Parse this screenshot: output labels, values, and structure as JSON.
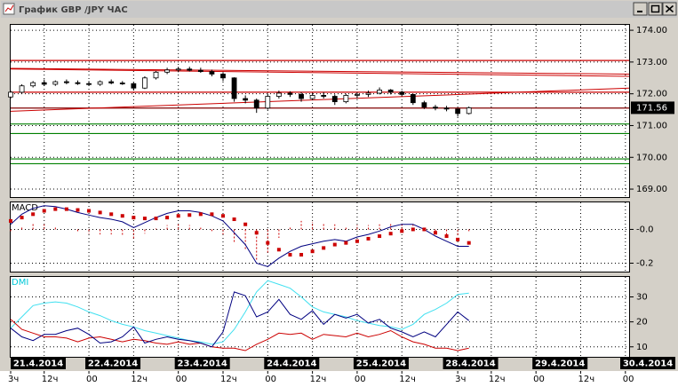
{
  "window": {
    "title": "График GBP /JPY ЧАС"
  },
  "chart_data": [
    {
      "type": "candlestick",
      "x": [
        3,
        6,
        9,
        12,
        15,
        18,
        21,
        24,
        27,
        30,
        33,
        36,
        39,
        42,
        45,
        48,
        51,
        54,
        57,
        60,
        63,
        66,
        69,
        72,
        75,
        78,
        81,
        84,
        87,
        90,
        93,
        96,
        99,
        102,
        105,
        108,
        111,
        114,
        117,
        120,
        123,
        126
      ],
      "open": [
        171.9,
        172.05,
        172.25,
        172.35,
        172.3,
        172.38,
        172.35,
        172.32,
        172.3,
        172.38,
        172.34,
        172.32,
        172.18,
        172.5,
        172.68,
        172.75,
        172.78,
        172.74,
        172.7,
        172.62,
        172.5,
        171.85,
        171.8,
        171.55,
        171.92,
        172.02,
        171.98,
        171.85,
        171.95,
        171.92,
        171.75,
        171.95,
        171.98,
        172.02,
        172.12,
        172.05,
        171.98,
        171.72,
        171.58,
        171.55,
        171.52,
        171.38
      ],
      "high": [
        172.1,
        172.3,
        172.4,
        172.45,
        172.42,
        172.45,
        172.42,
        172.4,
        172.42,
        172.45,
        172.4,
        172.35,
        172.55,
        172.72,
        172.82,
        172.85,
        172.85,
        172.82,
        172.76,
        172.68,
        172.52,
        171.95,
        171.85,
        172.0,
        172.1,
        172.08,
        172.05,
        172.02,
        172.05,
        171.98,
        172.0,
        172.05,
        172.1,
        172.2,
        172.15,
        172.1,
        172.0,
        171.78,
        171.65,
        171.62,
        171.55,
        171.6
      ],
      "low": [
        171.85,
        172.0,
        172.2,
        172.25,
        172.25,
        172.3,
        172.28,
        172.25,
        172.25,
        172.3,
        172.28,
        172.1,
        172.15,
        172.45,
        172.62,
        172.68,
        172.7,
        172.66,
        172.55,
        172.4,
        171.75,
        171.7,
        171.4,
        171.5,
        171.85,
        171.9,
        171.75,
        171.8,
        171.85,
        171.65,
        171.7,
        171.85,
        171.9,
        171.98,
        171.98,
        171.92,
        171.65,
        171.52,
        171.48,
        171.45,
        171.28,
        171.35
      ],
      "close": [
        172.05,
        172.25,
        172.35,
        172.3,
        172.38,
        172.35,
        172.32,
        172.3,
        172.38,
        172.34,
        172.32,
        172.18,
        172.5,
        172.68,
        172.75,
        172.78,
        172.74,
        172.7,
        172.62,
        172.5,
        171.85,
        171.8,
        171.55,
        171.92,
        172.02,
        171.98,
        171.85,
        171.95,
        171.92,
        171.75,
        171.95,
        171.98,
        172.02,
        172.12,
        172.05,
        171.98,
        171.72,
        171.58,
        171.55,
        171.52,
        171.38,
        171.56
      ],
      "up_color": "#ffffff",
      "down_color": "#000000",
      "xlim": [
        3,
        169
      ],
      "ylim": [
        168.75,
        174.17
      ],
      "yticks": [
        {
          "value": 174,
          "label": "174.00"
        },
        {
          "value": 173,
          "label": "173.00"
        },
        {
          "value": 172,
          "label": "172.00"
        },
        {
          "value": 171,
          "label": "171.00"
        },
        {
          "value": 170,
          "label": "170.00"
        },
        {
          "value": 169,
          "label": "169.00"
        }
      ],
      "grid": true,
      "levels": [
        {
          "value": 173.05,
          "color": "#cc0000"
        },
        {
          "value": 172.05,
          "color": "#cc0000"
        },
        {
          "value": 171.55,
          "color": "#800000"
        },
        {
          "value": 171.05,
          "color": "#008000"
        },
        {
          "value": 170.75,
          "color": "#008000"
        },
        {
          "value": 169.95,
          "color": "#008000"
        },
        {
          "value": 169.8,
          "color": "#008000"
        }
      ],
      "trend_lines": [
        {
          "x": [
            3,
            169
          ],
          "y": [
            172.8,
            172.62
          ],
          "color": "#cc0000"
        },
        {
          "x": [
            3,
            169
          ],
          "y": [
            172.78,
            172.55
          ],
          "color": "#cc0000"
        },
        {
          "x": [
            3,
            169
          ],
          "y": [
            171.45,
            172.18
          ],
          "color": "#cc0000"
        }
      ],
      "last_price": 171.56
    },
    {
      "type": "line",
      "title": "MACD",
      "title_color": "#000000",
      "x": [
        3,
        6,
        9,
        12,
        15,
        18,
        21,
        24,
        27,
        30,
        33,
        36,
        39,
        42,
        45,
        48,
        51,
        54,
        57,
        60,
        63,
        66,
        69,
        72,
        75,
        78,
        81,
        84,
        87,
        90,
        93,
        96,
        99,
        102,
        105,
        108,
        111,
        114,
        117,
        120,
        123,
        126
      ],
      "xlim": [
        3,
        169
      ],
      "ylim": [
        -0.25,
        0.16
      ],
      "yticks": [
        {
          "value": 0,
          "label": "-0.0"
        },
        -0.2
      ],
      "grid": true,
      "series": [
        {
          "color": "#cc0000",
          "style": "bars",
          "values": [
            -0.02,
            0.02,
            0.035,
            0.03,
            0.015,
            0,
            -0.015,
            -0.025,
            -0.03,
            -0.03,
            -0.035,
            -0.06,
            -0.025,
            0.005,
            0.025,
            0.03,
            0.025,
            0.01,
            -0.01,
            -0.03,
            -0.08,
            -0.12,
            -0.18,
            -0.14,
            -0.05,
            0.02,
            0.05,
            0.045,
            0.04,
            0.03,
            0.01,
            0.025,
            0.025,
            0.03,
            0.04,
            0.04,
            0.03,
            0,
            -0.02,
            -0.03,
            -0.04,
            -0.02
          ]
        },
        {
          "color": "#000080",
          "style": "line",
          "values": [
            0.03,
            0.09,
            0.125,
            0.14,
            0.135,
            0.12,
            0.1,
            0.085,
            0.07,
            0.06,
            0.045,
            0.01,
            0.04,
            0.07,
            0.095,
            0.11,
            0.11,
            0.1,
            0.08,
            0.05,
            -0.02,
            -0.09,
            -0.2,
            -0.22,
            -0.17,
            -0.13,
            -0.1,
            -0.085,
            -0.07,
            -0.06,
            -0.07,
            -0.045,
            -0.03,
            -0.01,
            0.015,
            0.03,
            0.03,
            0.0,
            -0.04,
            -0.07,
            -0.1,
            -0.1
          ]
        },
        {
          "color": "#cc0000",
          "style": "markers",
          "values": [
            0.05,
            0.07,
            0.09,
            0.11,
            0.12,
            0.12,
            0.115,
            0.11,
            0.1,
            0.09,
            0.08,
            0.07,
            0.065,
            0.065,
            0.07,
            0.08,
            0.085,
            0.09,
            0.09,
            0.08,
            0.06,
            0.03,
            -0.02,
            -0.08,
            -0.12,
            -0.15,
            -0.15,
            -0.13,
            -0.11,
            -0.09,
            -0.08,
            -0.07,
            -0.055,
            -0.04,
            -0.025,
            -0.01,
            0.0,
            0.0,
            -0.02,
            -0.04,
            -0.06,
            -0.08
          ]
        }
      ]
    },
    {
      "type": "line",
      "title": "DMI",
      "title_color": "#00c8d8",
      "x": [
        3,
        6,
        9,
        12,
        15,
        18,
        21,
        24,
        27,
        30,
        33,
        36,
        39,
        42,
        45,
        48,
        51,
        54,
        57,
        60,
        63,
        66,
        69,
        72,
        75,
        78,
        81,
        84,
        87,
        90,
        93,
        96,
        99,
        102,
        105,
        108,
        111,
        114,
        117,
        120,
        123,
        126
      ],
      "xlim": [
        3,
        169
      ],
      "ylim": [
        6,
        38
      ],
      "yticks": [
        30,
        20,
        10
      ],
      "grid": true,
      "series": [
        {
          "color": "#40e0f0",
          "style": "line",
          "values": [
            17.5,
            22,
            26.5,
            27.5,
            28,
            27.5,
            26,
            24,
            22.5,
            20.5,
            19,
            18,
            16.5,
            15.5,
            14.5,
            13.5,
            12.5,
            12,
            11,
            12,
            17,
            24,
            32,
            36.5,
            35,
            33.5,
            30,
            26,
            24,
            23,
            22,
            20.5,
            19.5,
            18.5,
            18,
            17,
            19,
            23,
            25,
            27.5,
            31,
            31.5
          ]
        },
        {
          "color": "#cc0000",
          "style": "line",
          "values": [
            21,
            17,
            15.5,
            14,
            14,
            13.5,
            12,
            13.5,
            14,
            13,
            12,
            13,
            12.5,
            11.5,
            11,
            12,
            11,
            11.5,
            10,
            9.5,
            9.5,
            8.5,
            11,
            13,
            15.5,
            15,
            15.5,
            13,
            15,
            14.5,
            14,
            15.5,
            14,
            15,
            16.5,
            14,
            12,
            11,
            9.5,
            9.5,
            8.5,
            9.5
          ]
        },
        {
          "color": "#000080",
          "style": "line",
          "values": [
            17.5,
            14,
            12.5,
            15,
            15,
            16.5,
            17.5,
            15,
            11.5,
            12,
            14,
            18,
            11.5,
            13,
            14,
            13,
            12.5,
            11.5,
            10,
            16,
            32,
            30.5,
            22,
            24,
            29,
            23,
            21,
            24.5,
            19,
            23,
            21.5,
            23,
            19.5,
            21,
            17.5,
            16,
            14,
            16,
            14,
            19,
            24,
            20.5
          ]
        }
      ],
      "xticks": [
        {
          "value": 3,
          "label": "3ч"
        },
        {
          "value": 12,
          "label": "12ч"
        },
        {
          "value": 24,
          "label": "00"
        },
        {
          "value": 36,
          "label": "12ч"
        },
        {
          "value": 48,
          "label": "00"
        },
        {
          "value": 60,
          "label": "12ч"
        },
        {
          "value": 72,
          "label": "00"
        },
        {
          "value": 84,
          "label": "12ч"
        },
        {
          "value": 96,
          "label": "00"
        },
        {
          "value": 108,
          "label": "12ч"
        },
        {
          "value": 123,
          "label": "3ч"
        },
        {
          "value": 132,
          "label": "12ч"
        },
        {
          "value": 144,
          "label": "00"
        },
        {
          "value": 156,
          "label": "12ч"
        },
        {
          "value": 168,
          "label": "00"
        }
      ],
      "date_ticks": [
        {
          "value": 0,
          "label": "21.4.2014"
        },
        {
          "value": 24,
          "label": "22.4.2014"
        },
        {
          "value": 48,
          "label": "23.4.2014"
        },
        {
          "value": 72,
          "label": "24.4.2014"
        },
        {
          "value": 96,
          "label": "25.4.2014"
        },
        {
          "value": 120,
          "label": "28.4.2014"
        },
        {
          "value": 144,
          "label": "29.4.2014"
        },
        {
          "value": 168,
          "label": "30.4.2014"
        }
      ]
    }
  ]
}
